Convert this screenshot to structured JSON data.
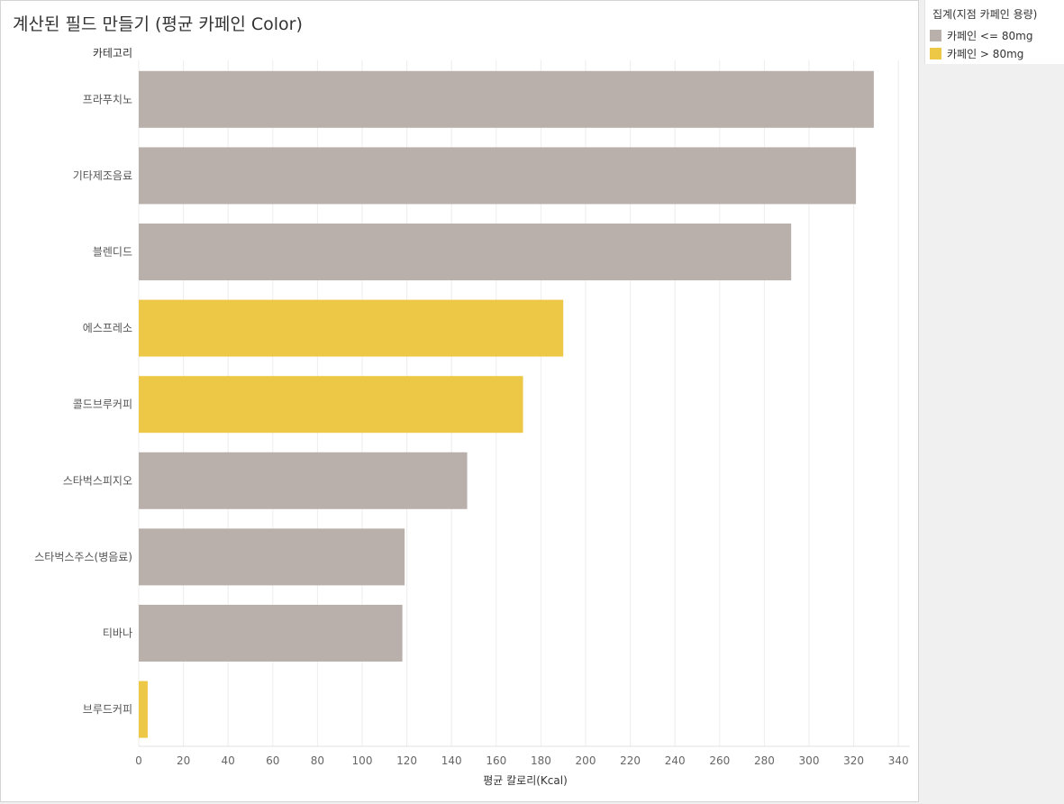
{
  "chart_data": {
    "type": "bar",
    "orientation": "horizontal",
    "title": "계산된 필드 만들기 (평균 카페인 Color)",
    "category_axis_title": "카테고리",
    "xlabel": "평균 칼로리(Kcal)",
    "xlim": [
      0,
      345
    ],
    "xticks": [
      0,
      20,
      40,
      60,
      80,
      100,
      120,
      140,
      160,
      180,
      200,
      220,
      240,
      260,
      280,
      300,
      320,
      340
    ],
    "grid": true,
    "categories": [
      "프라푸치노",
      "기타제조음료",
      "블렌디드",
      "에스프레소",
      "콜드브루커피",
      "스타벅스피지오",
      "스타벅스주스(병음료)",
      "티바나",
      "브루드커피"
    ],
    "values": [
      329,
      321,
      292,
      190,
      172,
      147,
      119,
      118,
      4
    ],
    "color_group": [
      "low",
      "low",
      "low",
      "high",
      "high",
      "low",
      "low",
      "low",
      "high"
    ],
    "colors": {
      "low": "#bab0ab",
      "high": "#ecc846"
    },
    "legend": {
      "title": "집계(지점 카페인 용량)",
      "position": "top-right",
      "items": [
        {
          "key": "low",
          "label": "카페인 <= 80mg"
        },
        {
          "key": "high",
          "label": "카페인 > 80mg"
        }
      ]
    }
  }
}
